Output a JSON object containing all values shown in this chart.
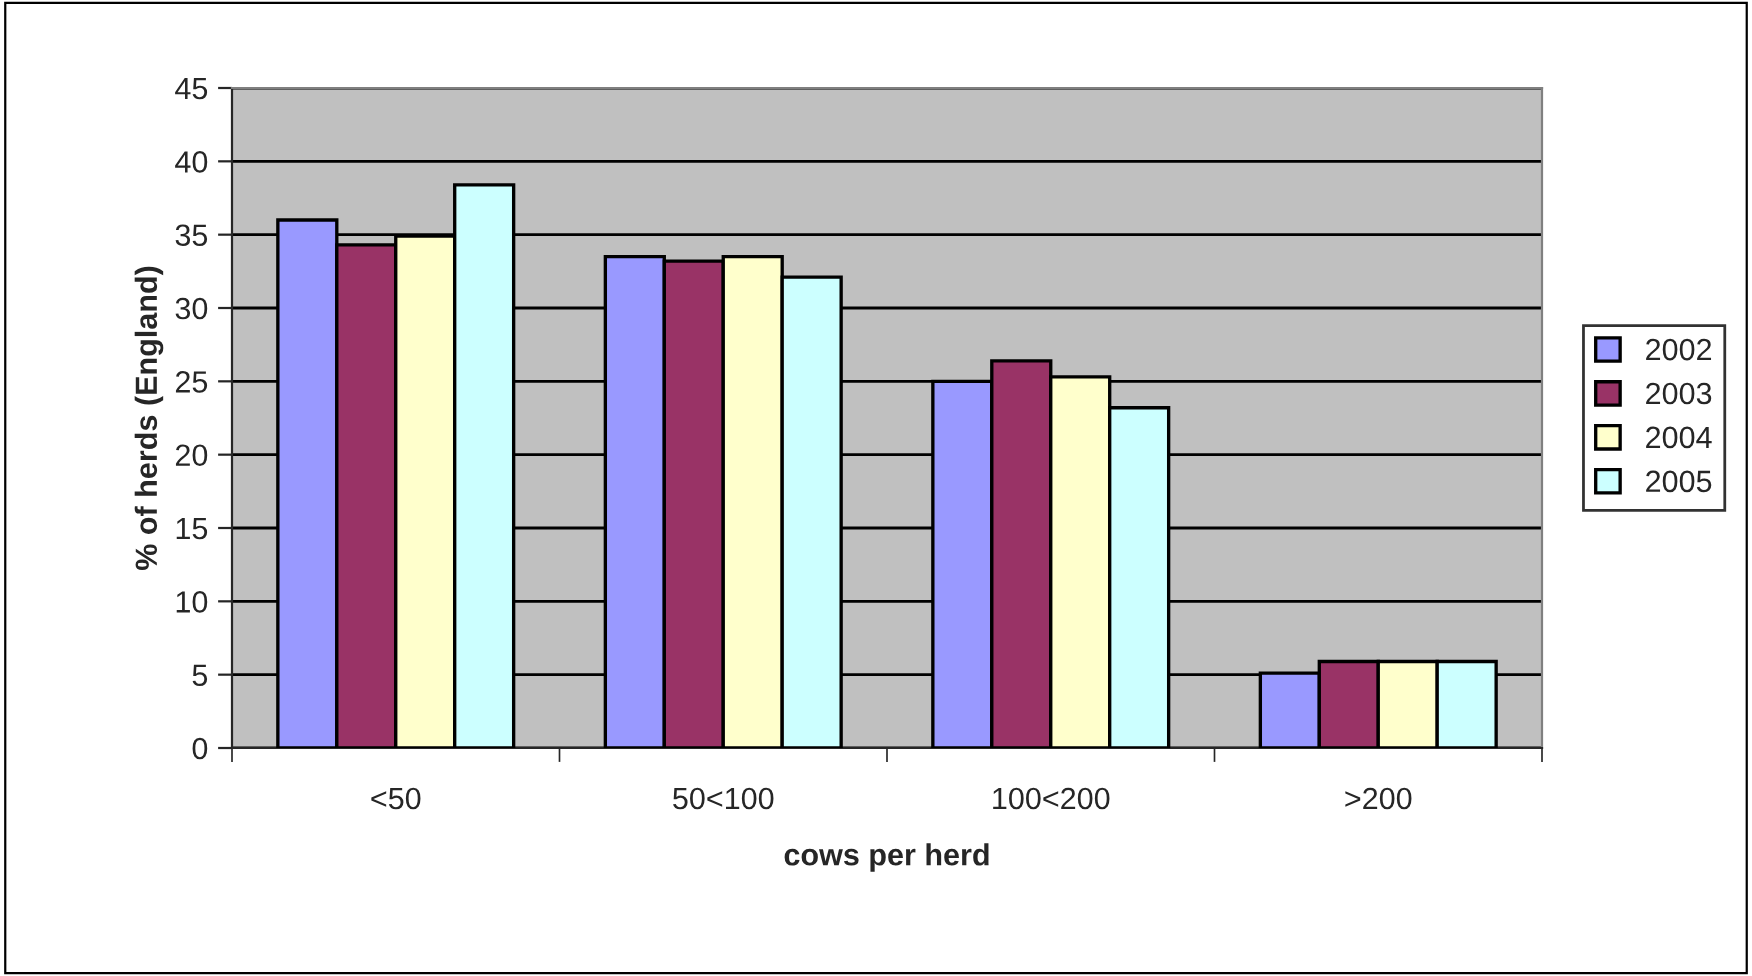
{
  "chart_data": {
    "type": "bar",
    "xlabel": "cows per herd",
    "ylabel": "% of herds (England)",
    "categories": [
      "<50",
      "50<100",
      "100<200",
      ">200"
    ],
    "series": [
      {
        "name": "2002",
        "color": "#9999ff",
        "values": [
          36.0,
          33.5,
          25.0,
          5.1
        ]
      },
      {
        "name": "2003",
        "color": "#993366",
        "values": [
          34.3,
          33.2,
          26.4,
          5.9
        ]
      },
      {
        "name": "2004",
        "color": "#ffffcc",
        "values": [
          34.9,
          33.5,
          25.3,
          5.9
        ]
      },
      {
        "name": "2005",
        "color": "#ccffff",
        "values": [
          38.4,
          32.1,
          23.2,
          5.9
        ]
      }
    ],
    "ylim": [
      0,
      45
    ],
    "yticks": [
      0,
      5,
      10,
      15,
      20,
      25,
      30,
      35,
      40,
      45
    ],
    "grid": "y",
    "legend": "right"
  }
}
